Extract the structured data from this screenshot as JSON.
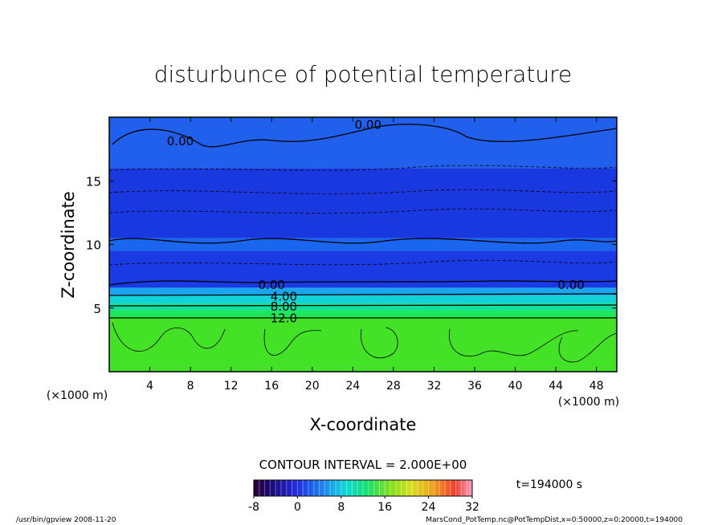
{
  "chart_data": {
    "type": "heatmap",
    "title": "disturbunce of potential temperature",
    "xlabel": "X-coordinate",
    "ylabel": "Z-coordinate",
    "x_unit_left": "(×1000 m)",
    "x_unit_right": "(×1000 m)",
    "xlim": [
      0,
      50
    ],
    "ylim": [
      0,
      20
    ],
    "x_ticks": [
      4,
      8,
      12,
      16,
      20,
      24,
      28,
      32,
      36,
      40,
      44,
      48
    ],
    "y_ticks": [
      5,
      10,
      15
    ],
    "contour_labels": [
      {
        "text": "0.00",
        "x": 7,
        "y": 18.1
      },
      {
        "text": "0.00",
        "x": 25.5,
        "y": 19.4
      },
      {
        "text": "0.00",
        "x": 16,
        "y": 6.8
      },
      {
        "text": "0.00",
        "x": 45.5,
        "y": 6.8
      },
      {
        "text": "4.00",
        "x": 17.2,
        "y": 5.9
      },
      {
        "text": "8.00",
        "x": 17.2,
        "y": 5.1
      },
      {
        "text": "12.0",
        "x": 17.2,
        "y": 4.2
      }
    ],
    "contour_interval_label": "CONTOUR INTERVAL = 2.000E+00",
    "time_label": "t=194000 s",
    "colorbar": {
      "min": -8,
      "max": 32,
      "tick_labels": [
        "-8",
        "0",
        "8",
        "16",
        "24",
        "32"
      ],
      "tick_values": [
        -8,
        0,
        8,
        16,
        24,
        32
      ]
    },
    "regions": [
      {
        "z_from": 0,
        "z_to": 4.2,
        "value": 14,
        "color": "#43e226"
      },
      {
        "z_from": 4.2,
        "z_to": 4.8,
        "value": 11,
        "color": "#1ee65a"
      },
      {
        "z_from": 4.8,
        "z_to": 5.4,
        "value": 8,
        "color": "#12e09a"
      },
      {
        "z_from": 5.4,
        "z_to": 6.0,
        "value": 5,
        "color": "#10d2d8"
      },
      {
        "z_from": 6.0,
        "z_to": 6.6,
        "value": 2,
        "color": "#1aa6ee"
      },
      {
        "z_from": 6.6,
        "z_to": 9.5,
        "value": -3,
        "color": "#1a3ae4"
      },
      {
        "z_from": 9.5,
        "z_to": 10.5,
        "value": -1,
        "color": "#1a66ee"
      },
      {
        "z_from": 10.5,
        "z_to": 16,
        "value": -3,
        "color": "#1a38e0"
      },
      {
        "z_from": 16,
        "z_to": 20,
        "value": -1,
        "color": "#2060ec"
      }
    ]
  },
  "footer": {
    "left": "/usr/bin/gpview   2008-11-20",
    "right": "MarsCond_PotTemp.nc@PotTempDist,x=0:50000,z=0:20000,t=194000"
  }
}
